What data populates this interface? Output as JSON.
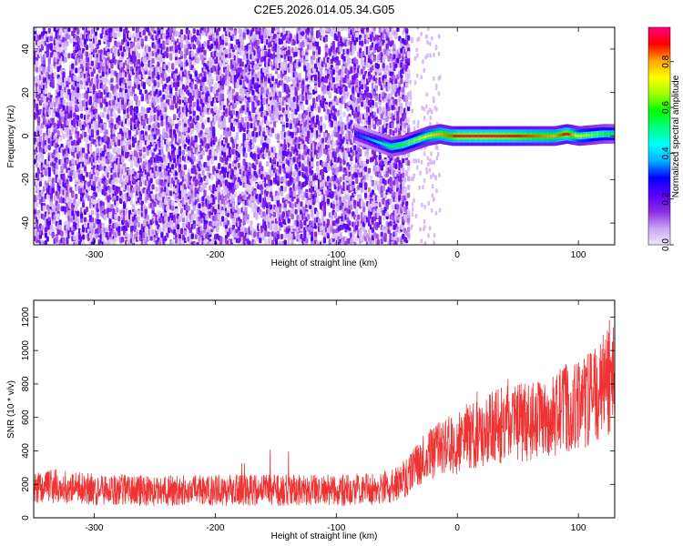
{
  "title": "C2E5.2026.014.05.34.G05",
  "chart_data": [
    {
      "type": "heatmap",
      "xlabel": "Height of straight line (km)",
      "ylabel": "Frequency (Hz)",
      "xlim": [
        -350,
        130
      ],
      "ylim": [
        -50,
        50
      ],
      "xticks": [
        -300,
        -200,
        -100,
        0,
        100
      ],
      "yticks": [
        -40,
        -20,
        0,
        20,
        40
      ],
      "colorbar": {
        "label": "Normalized spectral amplitude",
        "range": [
          0.0,
          0.95
        ],
        "ticks": [
          0.0,
          0.2,
          0.4,
          0.6,
          0.8
        ],
        "colormap": [
          "#f2e6fb",
          "#c8a2f5",
          "#8a2be2",
          "#5a00ff",
          "#0000ff",
          "#00b0ff",
          "#00ffff",
          "#00ff80",
          "#00ff00",
          "#9fff00",
          "#ffff00",
          "#ffa500",
          "#ff0000",
          "#ff0080"
        ]
      },
      "noise_region_x": [
        -350,
        -40
      ],
      "signal_track": {
        "x": [
          -85,
          -75,
          -65,
          -55,
          -45,
          -35,
          -25,
          -15,
          -5,
          0,
          20,
          40,
          60,
          80,
          90,
          100,
          120,
          130
        ],
        "frequency": [
          1,
          -1,
          -3,
          -5,
          -4,
          -2,
          0,
          1,
          0,
          0,
          0,
          0,
          0,
          0,
          1,
          0,
          1,
          1
        ],
        "amplitude": [
          0.3,
          0.35,
          0.45,
          0.55,
          0.6,
          0.65,
          0.75,
          0.8,
          0.85,
          0.9,
          0.92,
          0.9,
          0.85,
          0.8,
          0.9,
          0.7,
          0.6,
          0.55
        ]
      }
    },
    {
      "type": "line",
      "xlabel": "Height of straight line (km)",
      "ylabel": "SNR (10 * v/v)",
      "xlim": [
        -350,
        130
      ],
      "ylim": [
        0,
        1300
      ],
      "xticks": [
        -300,
        -200,
        -100,
        0,
        100
      ],
      "yticks": [
        0,
        200,
        400,
        600,
        800,
        1000,
        1200
      ],
      "color": "#ee3333",
      "series": [
        {
          "x": [
            -350,
            -330,
            -300,
            -250,
            -200,
            -150,
            -100,
            -70,
            -50,
            -40,
            -30,
            -20,
            -10,
            0,
            20,
            40,
            60,
            80,
            90,
            100,
            110,
            120,
            130
          ],
          "y": [
            180,
            190,
            170,
            160,
            165,
            165,
            165,
            170,
            200,
            260,
            330,
            380,
            420,
            450,
            520,
            560,
            580,
            620,
            660,
            680,
            720,
            780,
            850
          ]
        }
      ]
    }
  ]
}
